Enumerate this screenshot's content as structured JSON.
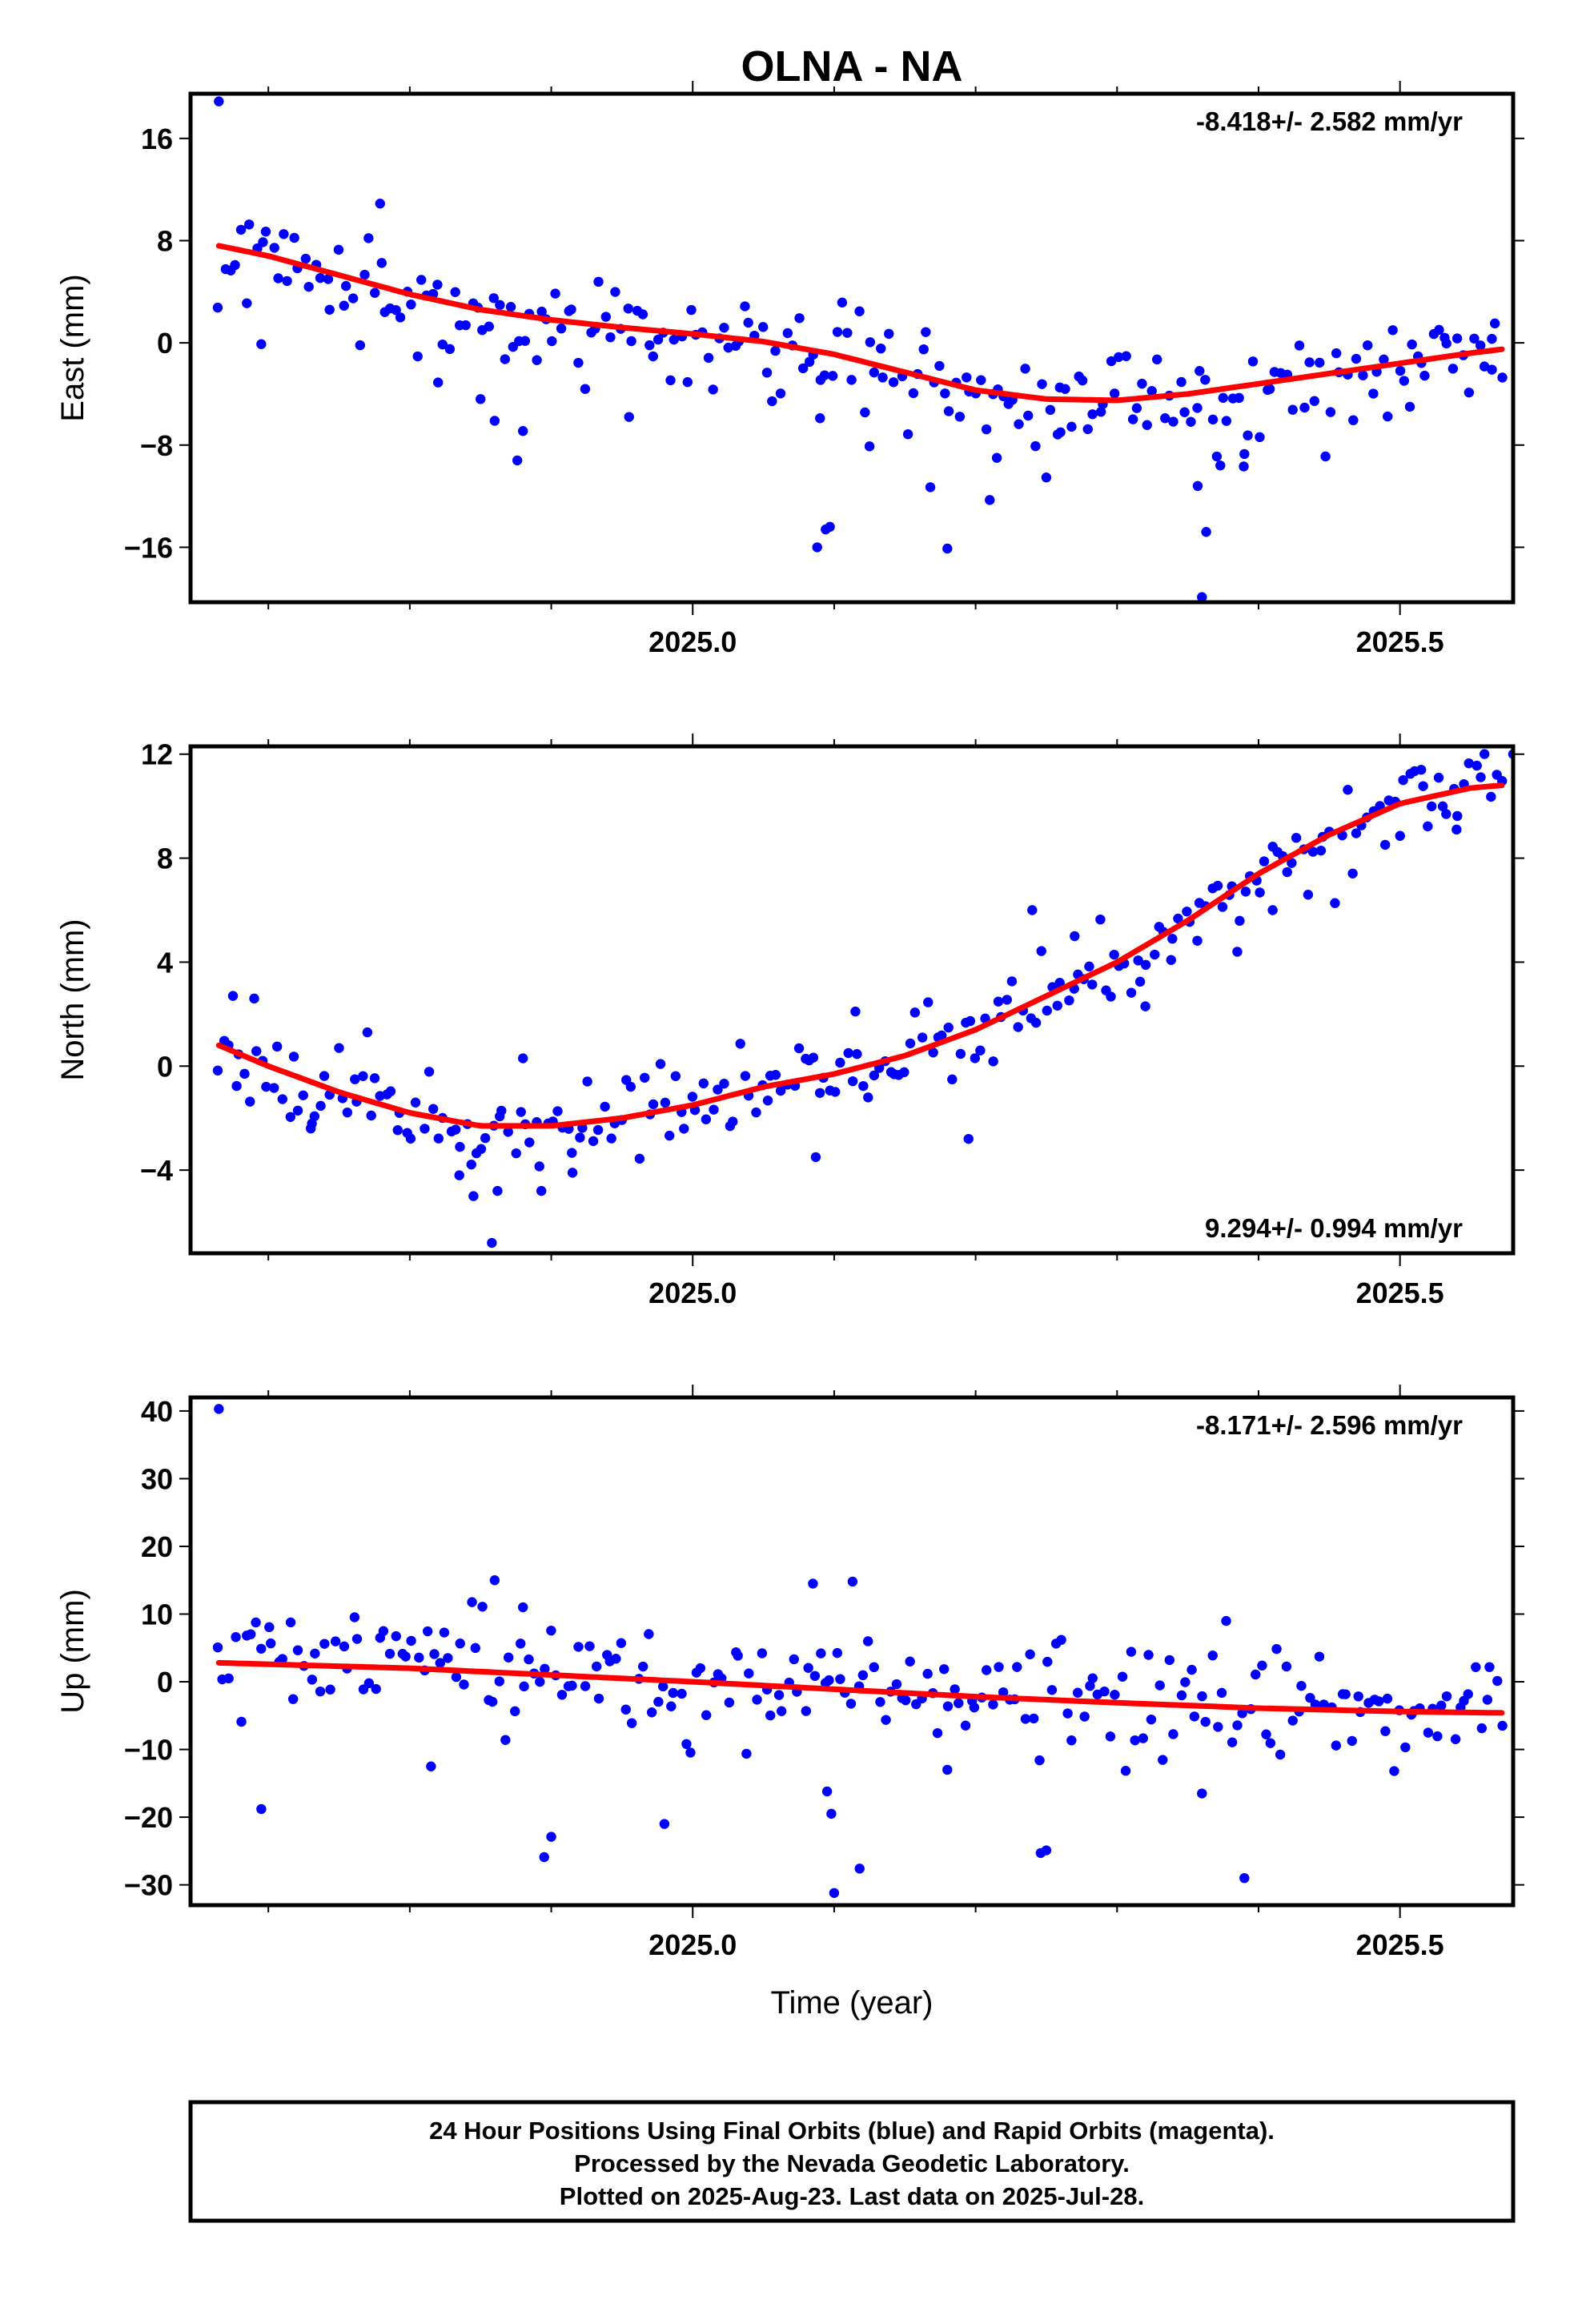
{
  "figure": {
    "title": "OLNA - NA",
    "xlabel": "Time (year)",
    "footer": [
      "24 Hour Positions Using Final Orbits (blue) and Rapid Orbits (magenta).",
      "Processed by the Nevada Geodetic Laboratory.",
      "Plotted on 2025-Aug-23. Last data on 2025-Jul-28."
    ],
    "colors": {
      "points": "#0000ff",
      "fit": "#ff0000",
      "axes": "#000000"
    }
  },
  "chart_data": [
    {
      "type": "scatter",
      "name": "east",
      "ylabel": "East (mm)",
      "rate": "-8.418+/- 2.582 mm/yr",
      "xlim": [
        2024.645,
        2025.58
      ],
      "ylim": [
        -20.3,
        19.5
      ],
      "xticks": [
        2025.0,
        2025.5
      ],
      "xtick_labels": [
        "2025.0",
        "2025.5"
      ],
      "xminor": [
        2024.7,
        2024.8,
        2024.9,
        2025.1,
        2025.2,
        2025.3,
        2025.4
      ],
      "yticks": [
        -16,
        -8,
        0,
        8,
        16
      ],
      "ytick_labels": [
        "−16",
        "−8",
        "0",
        "8",
        "16"
      ],
      "fit": {
        "x": [
          2024.665,
          2024.7,
          2024.75,
          2024.8,
          2024.85,
          2024.9,
          2024.95,
          2025.0,
          2025.05,
          2025.1,
          2025.15,
          2025.2,
          2025.25,
          2025.3,
          2025.35,
          2025.4,
          2025.45,
          2025.5,
          2025.55,
          2025.572
        ],
        "y": [
          7.6,
          6.8,
          5.3,
          3.8,
          2.6,
          1.8,
          1.2,
          0.7,
          0.1,
          -0.9,
          -2.3,
          -3.7,
          -4.4,
          -4.5,
          -4.0,
          -3.2,
          -2.4,
          -1.6,
          -0.8,
          -0.5
        ]
      },
      "outliers": [
        {
          "x": 2024.665,
          "y": 18.9
        },
        {
          "x": 2024.779,
          "y": 10.9
        },
        {
          "x": 2024.695,
          "y": -0.1
        },
        {
          "x": 2024.82,
          "y": -3.1
        },
        {
          "x": 2024.85,
          "y": -4.4
        },
        {
          "x": 2024.86,
          "y": -6.1
        },
        {
          "x": 2024.876,
          "y": -9.2
        },
        {
          "x": 2024.88,
          "y": -6.9
        },
        {
          "x": 2024.955,
          "y": -5.8
        },
        {
          "x": 2025.09,
          "y": -5.9
        },
        {
          "x": 2025.088,
          "y": -16.0
        },
        {
          "x": 2025.094,
          "y": -14.6
        },
        {
          "x": 2025.097,
          "y": -14.4
        },
        {
          "x": 2025.125,
          "y": -8.1
        },
        {
          "x": 2025.168,
          "y": -11.3
        },
        {
          "x": 2025.18,
          "y": -16.1
        },
        {
          "x": 2025.21,
          "y": -12.3
        },
        {
          "x": 2025.215,
          "y": -9.0
        },
        {
          "x": 2025.26,
          "y": -7.0
        },
        {
          "x": 2025.357,
          "y": -11.2
        },
        {
          "x": 2025.36,
          "y": -19.9
        },
        {
          "x": 2025.363,
          "y": -14.8
        },
        {
          "x": 2025.373,
          "y": -9.6
        },
        {
          "x": 2025.39,
          "y": -8.7
        },
        {
          "x": 2025.507,
          "y": -5.0
        },
        {
          "x": 2025.565,
          "y": -2.1
        }
      ],
      "scatter": {
        "seed": 11,
        "n": 240,
        "sigma": 1.7
      }
    },
    {
      "type": "scatter",
      "name": "north",
      "ylabel": "North (mm)",
      "rate": "9.294+/- 0.994 mm/yr",
      "xlim": [
        2024.645,
        2025.58
      ],
      "ylim": [
        -7.2,
        12.3
      ],
      "xticks": [
        2025.0,
        2025.5
      ],
      "xtick_labels": [
        "2025.0",
        "2025.5"
      ],
      "xminor": [
        2024.7,
        2024.8,
        2024.9,
        2025.1,
        2025.2,
        2025.3,
        2025.4
      ],
      "yticks": [
        -4,
        0,
        4,
        8,
        12
      ],
      "ytick_labels": [
        "−4",
        "0",
        "4",
        "8",
        "12"
      ],
      "fit": {
        "x": [
          2024.665,
          2024.7,
          2024.75,
          2024.8,
          2024.85,
          2024.9,
          2024.95,
          2025.0,
          2025.05,
          2025.1,
          2025.15,
          2025.2,
          2025.25,
          2025.3,
          2025.35,
          2025.4,
          2025.45,
          2025.5,
          2025.55,
          2025.572
        ],
        "y": [
          0.8,
          0.0,
          -1.0,
          -1.8,
          -2.3,
          -2.3,
          -2.0,
          -1.5,
          -0.8,
          -0.3,
          0.4,
          1.4,
          2.7,
          4.0,
          5.6,
          7.4,
          8.9,
          10.1,
          10.7,
          10.8
        ]
      },
      "outliers": [
        {
          "x": 2024.675,
          "y": 2.7
        },
        {
          "x": 2024.69,
          "y": 2.6
        },
        {
          "x": 2024.73,
          "y": -2.4
        },
        {
          "x": 2024.77,
          "y": 1.3
        },
        {
          "x": 2024.835,
          "y": -4.2
        },
        {
          "x": 2024.845,
          "y": -5.0
        },
        {
          "x": 2024.858,
          "y": -6.8
        },
        {
          "x": 2024.862,
          "y": -4.8
        },
        {
          "x": 2024.88,
          "y": 0.3
        },
        {
          "x": 2024.893,
          "y": -4.8
        },
        {
          "x": 2024.915,
          "y": -4.1
        },
        {
          "x": 2025.087,
          "y": -3.5
        },
        {
          "x": 2025.115,
          "y": 2.1
        },
        {
          "x": 2025.195,
          "y": -2.8
        },
        {
          "x": 2025.24,
          "y": 6.0
        },
        {
          "x": 2025.27,
          "y": 5.0
        },
        {
          "x": 2025.32,
          "y": 2.3
        },
        {
          "x": 2025.385,
          "y": 4.4
        },
        {
          "x": 2025.41,
          "y": 6.0
        },
        {
          "x": 2025.58,
          "y": 12.0
        },
        {
          "x": 2025.515,
          "y": 11.4
        },
        {
          "x": 2025.54,
          "y": 9.1
        }
      ],
      "scatter": {
        "seed": 23,
        "n": 240,
        "sigma": 0.75
      }
    },
    {
      "type": "scatter",
      "name": "up",
      "ylabel": "Up (mm)",
      "rate": "-8.171+/- 2.596 mm/yr",
      "xlim": [
        2024.645,
        2025.58
      ],
      "ylim": [
        -33.0,
        42.0
      ],
      "xticks": [
        2025.0,
        2025.5
      ],
      "xtick_labels": [
        "2025.0",
        "2025.5"
      ],
      "xminor": [
        2024.7,
        2024.8,
        2024.9,
        2025.1,
        2025.2,
        2025.3,
        2025.4
      ],
      "yticks": [
        -30,
        -20,
        -10,
        0,
        10,
        20,
        30,
        40
      ],
      "ytick_labels": [
        "−30",
        "−20",
        "−10",
        "0",
        "10",
        "20",
        "30",
        "40"
      ],
      "fit": {
        "x": [
          2024.665,
          2024.8,
          2024.9,
          2025.0,
          2025.1,
          2025.2,
          2025.3,
          2025.4,
          2025.5,
          2025.572
        ],
        "y": [
          2.8,
          2.0,
          1.0,
          0.0,
          -1.1,
          -2.2,
          -3.1,
          -3.9,
          -4.4,
          -4.6
        ]
      },
      "outliers": [
        {
          "x": 2024.665,
          "y": 40.3
        },
        {
          "x": 2024.695,
          "y": -18.8
        },
        {
          "x": 2024.815,
          "y": -12.5
        },
        {
          "x": 2024.86,
          "y": 15.0
        },
        {
          "x": 2024.88,
          "y": 11.0
        },
        {
          "x": 2024.895,
          "y": -25.9
        },
        {
          "x": 2024.9,
          "y": -22.9
        },
        {
          "x": 2024.98,
          "y": -21.0
        },
        {
          "x": 2025.085,
          "y": 14.5
        },
        {
          "x": 2025.095,
          "y": -16.2
        },
        {
          "x": 2025.098,
          "y": -19.5
        },
        {
          "x": 2025.1,
          "y": -31.2
        },
        {
          "x": 2025.113,
          "y": 14.8
        },
        {
          "x": 2025.118,
          "y": -27.6
        },
        {
          "x": 2025.246,
          "y": -25.3
        },
        {
          "x": 2025.25,
          "y": -24.9
        },
        {
          "x": 2025.36,
          "y": -16.5
        },
        {
          "x": 2025.39,
          "y": -29.0
        },
        {
          "x": 2025.18,
          "y": -13.0
        }
      ],
      "scatter": {
        "seed": 37,
        "n": 240,
        "sigma": 4.2
      }
    }
  ]
}
